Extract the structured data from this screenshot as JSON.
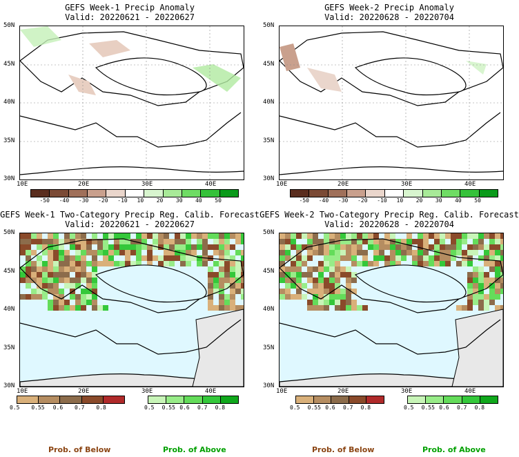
{
  "panels": {
    "p1": {
      "title": "GEFS Week-1 Precip Anomaly",
      "valid": "Valid: 20220621 - 20220627"
    },
    "p2": {
      "title": "GEFS Week-2 Precip Anomaly",
      "valid": "Valid: 20220628 - 20220704"
    },
    "p3": {
      "title": "GEFS Week-1 Two-Category Precip Reg. Calib. Forecast",
      "valid": "Valid: 20220621 - 20220627"
    },
    "p4": {
      "title": "GEFS Week-2 Two-Category Precip Reg. Calib. Forecast",
      "valid": "Valid: 20220628 - 20220704"
    }
  },
  "axes": {
    "lat_labels": [
      "50N",
      "45N",
      "40N",
      "35N",
      "30N"
    ],
    "lon_labels": [
      "10E",
      "20E",
      "30E",
      "40E"
    ]
  },
  "anomaly_colorbar": {
    "labels": [
      "-50",
      "-40",
      "-30",
      "-20",
      "-10",
      "10",
      "20",
      "30",
      "40",
      "50"
    ],
    "colors": [
      "#5a2d1e",
      "#7b4a35",
      "#a0705a",
      "#c9a08d",
      "#ead6cc",
      "#ffffff",
      "#d8f5cf",
      "#a8ea98",
      "#6fdc64",
      "#35c23a",
      "#0a9a1a"
    ]
  },
  "prob_colorbars": {
    "below": {
      "labels": [
        "0.5",
        "0.55",
        "0.6",
        "0.7",
        "0.8"
      ],
      "colors": [
        "#d9b07a",
        "#b58d61",
        "#8c6c4b",
        "#8a4a2a",
        "#b02a2a"
      ]
    },
    "above": {
      "labels": [
        "0.5",
        "0.55",
        "0.6",
        "0.7",
        "0.8"
      ],
      "colors": [
        "#c8f5b8",
        "#98ec88",
        "#64dc5a",
        "#34c83a",
        "#10a81c"
      ]
    }
  },
  "footer": {
    "below_label": "Prob. of Below",
    "above_label": "Prob. of Above",
    "below_color": "#8b4513",
    "above_color": "#00a000"
  },
  "map_colors": {
    "sea": "#dff8ff",
    "nodata": "#e8e8e8",
    "land_white": "#ffffff"
  }
}
